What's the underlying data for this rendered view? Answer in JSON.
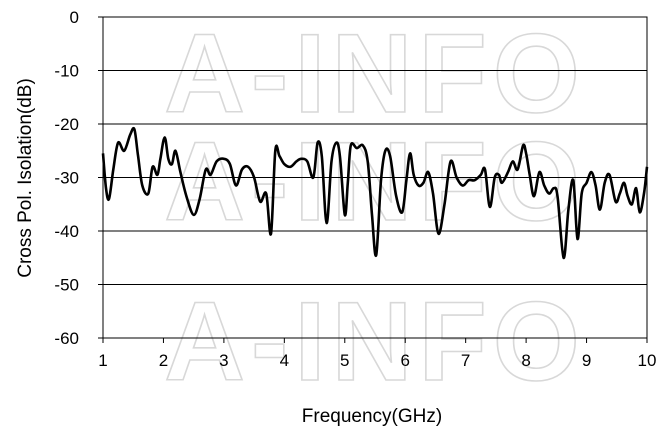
{
  "watermark": "A-INFO",
  "chart_data": {
    "type": "line",
    "xlabel": "Frequency(GHz)",
    "ylabel": "Cross Pol. Isolation(dB)",
    "xlim": [
      1,
      10
    ],
    "ylim": [
      -60,
      0
    ],
    "xticks": [
      1,
      2,
      3,
      4,
      5,
      6,
      7,
      8,
      9,
      10
    ],
    "yticks": [
      0,
      -10,
      -20,
      -30,
      -40,
      -50,
      -60
    ],
    "grid": "horizontal",
    "series": [
      {
        "color": "#000000",
        "points": [
          [
            1.0,
            -25.5
          ],
          [
            1.05,
            -32.0
          ],
          [
            1.1,
            -34.0
          ],
          [
            1.17,
            -28.5
          ],
          [
            1.25,
            -23.5
          ],
          [
            1.35,
            -25.0
          ],
          [
            1.45,
            -22.0
          ],
          [
            1.52,
            -21.0
          ],
          [
            1.58,
            -26.0
          ],
          [
            1.65,
            -31.5
          ],
          [
            1.75,
            -33.0
          ],
          [
            1.82,
            -28.0
          ],
          [
            1.9,
            -29.5
          ],
          [
            1.95,
            -26.5
          ],
          [
            2.02,
            -22.5
          ],
          [
            2.08,
            -26.5
          ],
          [
            2.14,
            -27.5
          ],
          [
            2.2,
            -25.0
          ],
          [
            2.28,
            -29.0
          ],
          [
            2.38,
            -33.5
          ],
          [
            2.5,
            -37.0
          ],
          [
            2.6,
            -34.0
          ],
          [
            2.7,
            -28.5
          ],
          [
            2.78,
            -29.5
          ],
          [
            2.88,
            -27.0
          ],
          [
            3.0,
            -26.5
          ],
          [
            3.1,
            -27.5
          ],
          [
            3.2,
            -31.5
          ],
          [
            3.3,
            -28.5
          ],
          [
            3.4,
            -28.0
          ],
          [
            3.5,
            -30.0
          ],
          [
            3.6,
            -34.5
          ],
          [
            3.7,
            -33.0
          ],
          [
            3.78,
            -40.5
          ],
          [
            3.85,
            -25.0
          ],
          [
            3.92,
            -26.0
          ],
          [
            4.0,
            -27.5
          ],
          [
            4.1,
            -28.0
          ],
          [
            4.2,
            -27.0
          ],
          [
            4.28,
            -26.5
          ],
          [
            4.38,
            -27.0
          ],
          [
            4.48,
            -30.0
          ],
          [
            4.55,
            -23.5
          ],
          [
            4.62,
            -26.0
          ],
          [
            4.7,
            -38.5
          ],
          [
            4.78,
            -27.0
          ],
          [
            4.86,
            -23.5
          ],
          [
            4.92,
            -26.0
          ],
          [
            5.0,
            -37.0
          ],
          [
            5.05,
            -31.0
          ],
          [
            5.1,
            -24.0
          ],
          [
            5.2,
            -24.5
          ],
          [
            5.3,
            -24.0
          ],
          [
            5.38,
            -27.0
          ],
          [
            5.45,
            -37.0
          ],
          [
            5.52,
            -44.5
          ],
          [
            5.6,
            -30.5
          ],
          [
            5.67,
            -25.0
          ],
          [
            5.75,
            -26.0
          ],
          [
            5.85,
            -33.5
          ],
          [
            5.95,
            -36.5
          ],
          [
            6.02,
            -30.5
          ],
          [
            6.08,
            -25.5
          ],
          [
            6.14,
            -29.5
          ],
          [
            6.22,
            -31.5
          ],
          [
            6.3,
            -31.0
          ],
          [
            6.38,
            -29.0
          ],
          [
            6.46,
            -33.0
          ],
          [
            6.55,
            -40.5
          ],
          [
            6.65,
            -35.0
          ],
          [
            6.75,
            -27.0
          ],
          [
            6.85,
            -30.0
          ],
          [
            6.95,
            -31.5
          ],
          [
            7.05,
            -30.5
          ],
          [
            7.15,
            -30.5
          ],
          [
            7.25,
            -29.5
          ],
          [
            7.32,
            -28.5
          ],
          [
            7.4,
            -35.5
          ],
          [
            7.48,
            -30.0
          ],
          [
            7.55,
            -29.5
          ],
          [
            7.6,
            -31.0
          ],
          [
            7.7,
            -29.0
          ],
          [
            7.78,
            -27.0
          ],
          [
            7.86,
            -28.5
          ],
          [
            7.95,
            -24.0
          ],
          [
            8.0,
            -25.5
          ],
          [
            8.06,
            -29.5
          ],
          [
            8.13,
            -33.5
          ],
          [
            8.22,
            -29.0
          ],
          [
            8.3,
            -31.5
          ],
          [
            8.38,
            -33.0
          ],
          [
            8.46,
            -32.0
          ],
          [
            8.52,
            -33.5
          ],
          [
            8.62,
            -45.0
          ],
          [
            8.7,
            -36.0
          ],
          [
            8.78,
            -30.5
          ],
          [
            8.85,
            -41.5
          ],
          [
            8.92,
            -33.0
          ],
          [
            9.0,
            -31.0
          ],
          [
            9.08,
            -29.0
          ],
          [
            9.15,
            -31.5
          ],
          [
            9.22,
            -36.0
          ],
          [
            9.3,
            -31.0
          ],
          [
            9.38,
            -29.5
          ],
          [
            9.48,
            -34.5
          ],
          [
            9.55,
            -33.0
          ],
          [
            9.62,
            -31.0
          ],
          [
            9.68,
            -33.5
          ],
          [
            9.75,
            -35.0
          ],
          [
            9.82,
            -32.0
          ],
          [
            9.88,
            -36.5
          ],
          [
            9.95,
            -33.0
          ],
          [
            10.0,
            -28.0
          ]
        ]
      }
    ]
  }
}
